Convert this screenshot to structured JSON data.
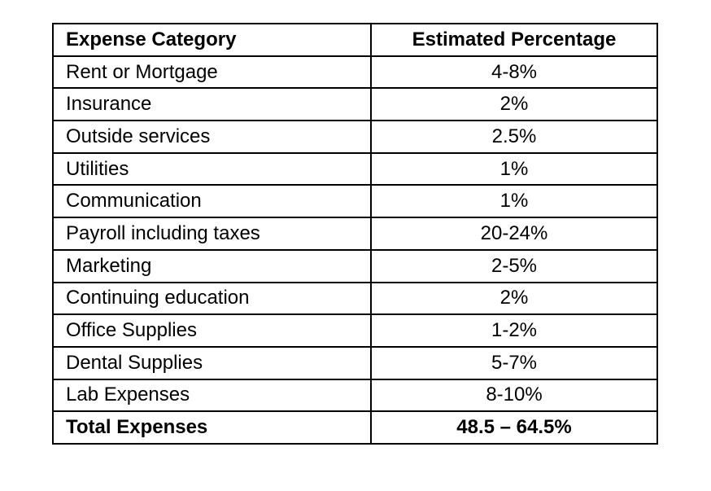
{
  "table": {
    "columns": [
      "Expense Category",
      "Estimated Percentage"
    ],
    "rows": [
      {
        "category": "Rent or Mortgage",
        "percentage": "4-8%"
      },
      {
        "category": "Insurance",
        "percentage": "2%"
      },
      {
        "category": "Outside services",
        "percentage": "2.5%"
      },
      {
        "category": "Utilities",
        "percentage": "1%"
      },
      {
        "category": "Communication",
        "percentage": "1%"
      },
      {
        "category": "Payroll including taxes",
        "percentage": "20-24%"
      },
      {
        "category": "Marketing",
        "percentage": "2-5%"
      },
      {
        "category": "Continuing education",
        "percentage": "2%"
      },
      {
        "category": "Office Supplies",
        "percentage": "1-2%"
      },
      {
        "category": "Dental Supplies",
        "percentage": "5-7%"
      },
      {
        "category": "Lab Expenses",
        "percentage": "8-10%"
      }
    ],
    "total": {
      "category": "Total Expenses",
      "percentage": "48.5 – 64.5%"
    }
  },
  "colors": {
    "border": "#000000",
    "text": "#000000",
    "background": "#ffffff"
  }
}
